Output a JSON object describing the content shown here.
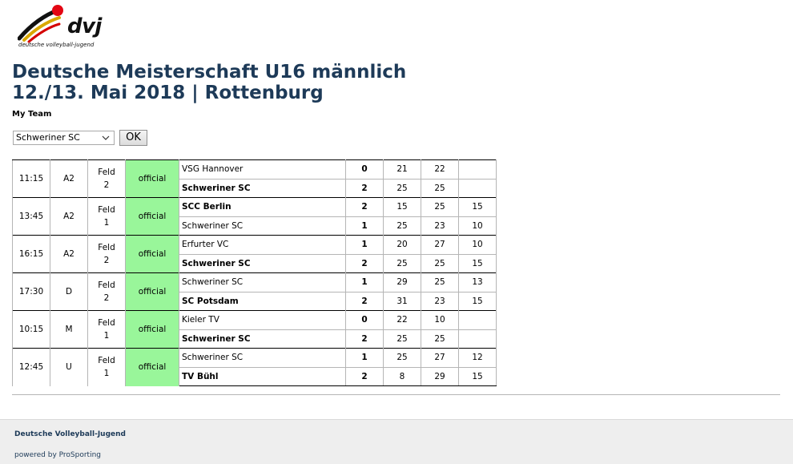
{
  "logo": {
    "text": "dvj",
    "subtitle": "deutsche volleyball-jugend"
  },
  "header": {
    "title": "Deutsche Meisterschaft U16 männlich",
    "subtitle": "12./13. Mai 2018 | Rottenburg"
  },
  "my_team": {
    "label": "My Team",
    "selected": "Schweriner SC",
    "ok_label": "OK"
  },
  "matches": [
    {
      "time": "11:15",
      "round": "A2",
      "field": [
        "Feld",
        "2"
      ],
      "status": "official",
      "teams": [
        {
          "name": "VSG Hannover",
          "winner": false,
          "sets": "0",
          "scores": [
            "21",
            "22",
            ""
          ]
        },
        {
          "name": "Schweriner SC",
          "winner": true,
          "sets": "2",
          "scores": [
            "25",
            "25",
            ""
          ]
        }
      ]
    },
    {
      "time": "13:45",
      "round": "A2",
      "field": [
        "Feld",
        "1"
      ],
      "status": "official",
      "teams": [
        {
          "name": "SCC Berlin",
          "winner": true,
          "sets": "2",
          "scores": [
            "15",
            "25",
            "15"
          ]
        },
        {
          "name": "Schweriner SC",
          "winner": false,
          "sets": "1",
          "scores": [
            "25",
            "23",
            "10"
          ]
        }
      ]
    },
    {
      "time": "16:15",
      "round": "A2",
      "field": [
        "Feld",
        "2"
      ],
      "status": "official",
      "teams": [
        {
          "name": "Erfurter VC",
          "winner": false,
          "sets": "1",
          "scores": [
            "20",
            "27",
            "10"
          ]
        },
        {
          "name": "Schweriner SC",
          "winner": true,
          "sets": "2",
          "scores": [
            "25",
            "25",
            "15"
          ]
        }
      ]
    },
    {
      "time": "17:30",
      "round": "D",
      "field": [
        "Feld",
        "2"
      ],
      "status": "official",
      "teams": [
        {
          "name": "Schweriner SC",
          "winner": false,
          "sets": "1",
          "scores": [
            "29",
            "25",
            "13"
          ]
        },
        {
          "name": "SC Potsdam",
          "winner": true,
          "sets": "2",
          "scores": [
            "31",
            "23",
            "15"
          ]
        }
      ]
    },
    {
      "time": "10:15",
      "round": "M",
      "field": [
        "Feld",
        "1"
      ],
      "status": "official",
      "teams": [
        {
          "name": "Kieler TV",
          "winner": false,
          "sets": "0",
          "scores": [
            "22",
            "10",
            ""
          ]
        },
        {
          "name": "Schweriner SC",
          "winner": true,
          "sets": "2",
          "scores": [
            "25",
            "25",
            ""
          ]
        }
      ]
    },
    {
      "time": "12:45",
      "round": "U",
      "field": [
        "Feld",
        "1"
      ],
      "status": "official",
      "teams": [
        {
          "name": "Schweriner SC",
          "winner": false,
          "sets": "1",
          "scores": [
            "25",
            "27",
            "12"
          ]
        },
        {
          "name": "TV Bühl",
          "winner": true,
          "sets": "2",
          "scores": [
            "8",
            "29",
            "15"
          ]
        }
      ]
    }
  ],
  "footer": {
    "organization": "Deutsche Volleyball-Jugend",
    "powered_by": "powered by ProSporting"
  },
  "colors": {
    "heading": "#1d3a58",
    "official_badge": "#99f69a",
    "footer_bg": "#eeeeee"
  }
}
